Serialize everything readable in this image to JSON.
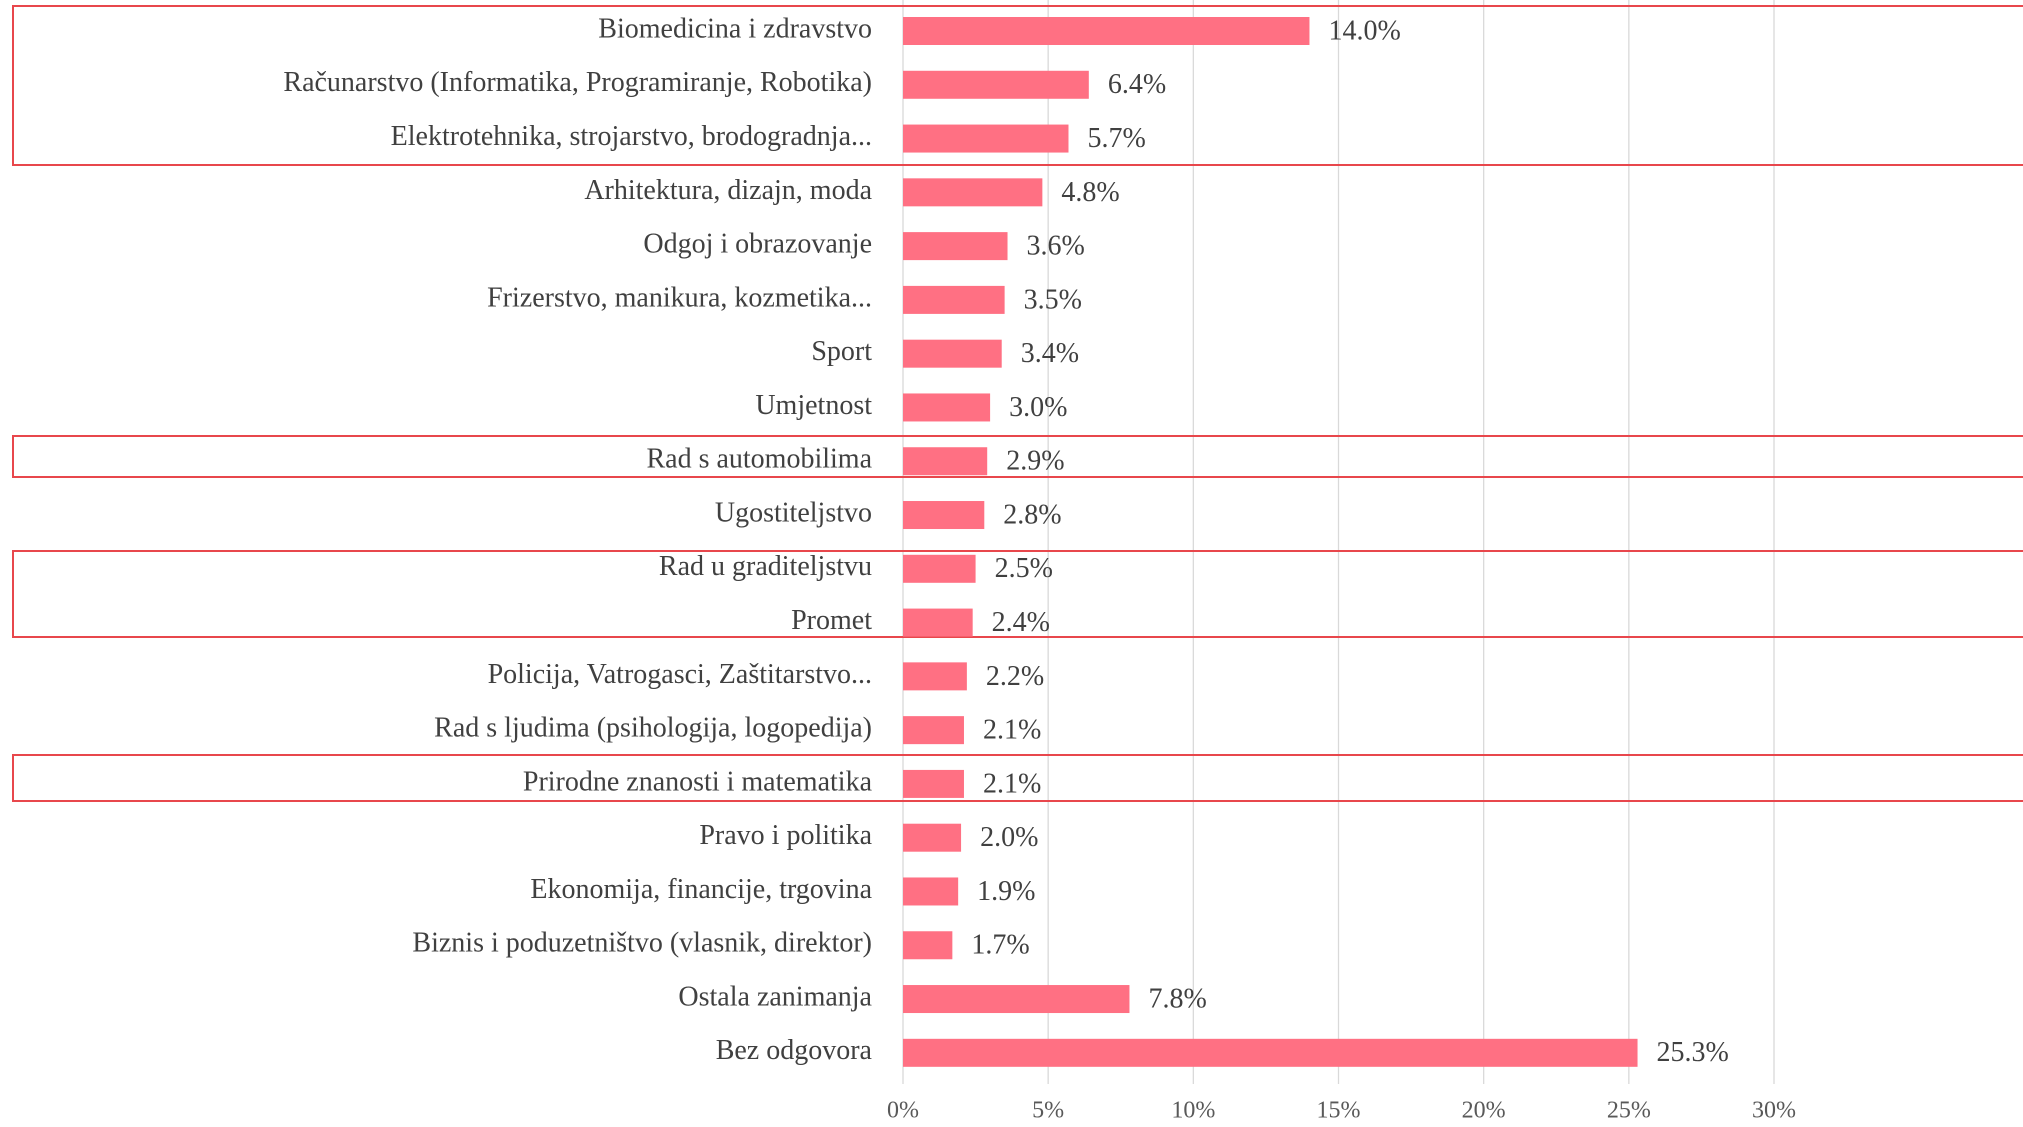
{
  "chart_data": {
    "type": "bar",
    "orientation": "horizontal",
    "categories": [
      "Biomedicina i zdravstvo",
      "Računarstvo (Informatika, Programiranje, Robotika)",
      "Elektrotehnika, strojarstvo, brodogradnja...",
      "Arhitektura, dizajn, moda",
      "Odgoj i obrazovanje",
      "Frizerstvo, manikura, kozmetika...",
      "Sport",
      "Umjetnost",
      "Rad s automobilima",
      "Ugostiteljstvo",
      "Rad u graditeljstvu",
      "Promet",
      "Policija, Vatrogasci, Zaštitarstvo...",
      "Rad s ljudima (psihologija, logopedija)",
      "Prirodne znanosti i matematika",
      "Pravo i politika",
      "Ekonomija, financije, trgovina",
      "Biznis i poduzetništvo (vlasnik, direktor)",
      "Ostala zanimanja",
      "Bez odgovora"
    ],
    "values": [
      14.0,
      6.4,
      5.7,
      4.8,
      3.6,
      3.5,
      3.4,
      3.0,
      2.9,
      2.8,
      2.5,
      2.4,
      2.2,
      2.1,
      2.1,
      2.0,
      1.9,
      1.7,
      7.8,
      25.3
    ],
    "value_labels": [
      "14.0%",
      "6.4%",
      "5.7%",
      "4.8%",
      "3.6%",
      "3.5%",
      "3.4%",
      "3.0%",
      "2.9%",
      "2.8%",
      "2.5%",
      "2.4%",
      "2.2%",
      "2.1%",
      "2.1%",
      "2.0%",
      "1.9%",
      "1.7%",
      "7.8%",
      "25.3%"
    ],
    "color": "#ff7083",
    "xlim": [
      0,
      30
    ],
    "xticks": [
      {
        "value": 0,
        "label": "0%"
      },
      {
        "value": 5,
        "label": "5%"
      },
      {
        "value": 10,
        "label": "10%"
      },
      {
        "value": 15,
        "label": "15%"
      },
      {
        "value": 20,
        "label": "20%"
      },
      {
        "value": 25,
        "label": "25%"
      },
      {
        "value": 30,
        "label": "30%"
      }
    ],
    "grid": true
  }
}
